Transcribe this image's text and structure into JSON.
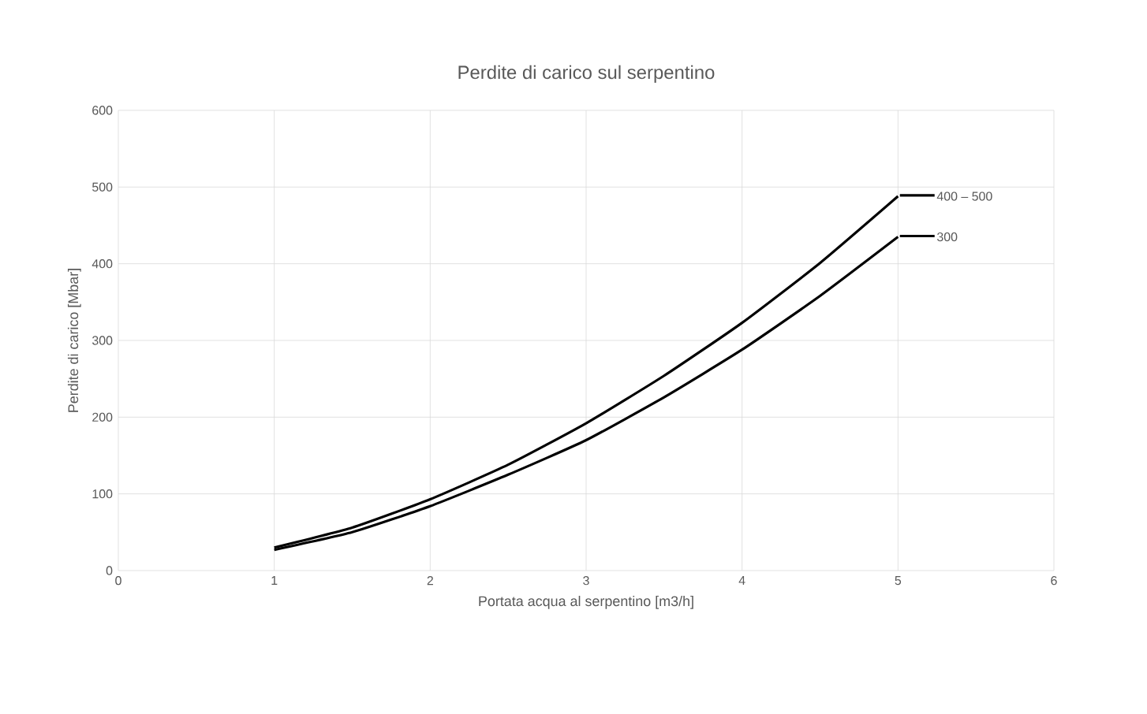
{
  "chart_data": {
    "type": "line",
    "title": "Perdite di carico sul serpentino",
    "xlabel": "Portata acqua al serpentino [m3/h]",
    "ylabel": "Perdite di carico [Mbar]",
    "x": [
      1,
      1.5,
      2,
      2.5,
      3,
      3.5,
      4,
      4.5,
      5
    ],
    "series": [
      {
        "name": "400 – 500",
        "color": "#000000",
        "values": [
          30,
          56,
          93,
          138,
          192,
          254,
          323,
          401,
          488
        ]
      },
      {
        "name": "300",
        "color": "#000000",
        "values": [
          27,
          50,
          84,
          125,
          170,
          226,
          288,
          358,
          435
        ]
      }
    ],
    "xlim": [
      0,
      6
    ],
    "ylim": [
      0,
      600
    ],
    "xticks": [
      0,
      1,
      2,
      3,
      4,
      5,
      6
    ],
    "yticks": [
      0,
      100,
      200,
      300,
      400,
      500,
      600
    ],
    "grid": true,
    "legend": "right",
    "marker": "none",
    "line_style": "solid"
  }
}
